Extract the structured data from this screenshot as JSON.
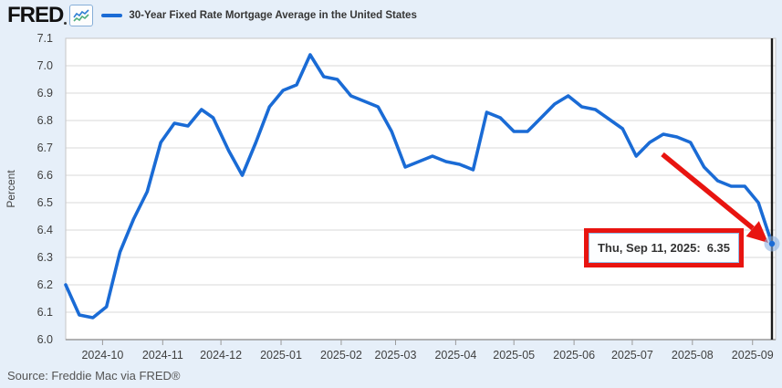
{
  "header": {
    "logo_text": "FRED",
    "legend_label": "30-Year Fixed Rate Mortgage Average in the United States"
  },
  "chart_data": {
    "type": "line",
    "title": "30-Year Fixed Rate Mortgage Average in the United States",
    "xlabel": "",
    "ylabel": "Percent",
    "ylim": [
      6.0,
      7.1
    ],
    "y_tick_step": 0.1,
    "grid": true,
    "legend_position": "top-left",
    "line_color": "#1a6bd5",
    "x_tick_labels": [
      "2024-10",
      "2024-11",
      "2024-12",
      "2025-01",
      "2025-02",
      "2025-03",
      "2025-04",
      "2025-05",
      "2025-06",
      "2025-07",
      "2025-08",
      "2025-09"
    ],
    "dates": [
      "2024-09-12",
      "2024-09-19",
      "2024-09-26",
      "2024-10-03",
      "2024-10-10",
      "2024-10-17",
      "2024-10-24",
      "2024-10-31",
      "2024-11-07",
      "2024-11-14",
      "2024-11-21",
      "2024-11-27",
      "2024-12-05",
      "2024-12-12",
      "2024-12-19",
      "2024-12-26",
      "2025-01-02",
      "2025-01-09",
      "2025-01-16",
      "2025-01-23",
      "2025-01-30",
      "2025-02-06",
      "2025-02-13",
      "2025-02-20",
      "2025-02-27",
      "2025-03-06",
      "2025-03-13",
      "2025-03-20",
      "2025-03-27",
      "2025-04-03",
      "2025-04-10",
      "2025-04-17",
      "2025-04-24",
      "2025-05-01",
      "2025-05-08",
      "2025-05-15",
      "2025-05-22",
      "2025-05-29",
      "2025-06-05",
      "2025-06-12",
      "2025-06-18",
      "2025-06-26",
      "2025-07-03",
      "2025-07-10",
      "2025-07-17",
      "2025-07-24",
      "2025-07-31",
      "2025-08-07",
      "2025-08-14",
      "2025-08-21",
      "2025-08-28",
      "2025-09-04",
      "2025-09-11"
    ],
    "values": [
      6.2,
      6.09,
      6.08,
      6.12,
      6.32,
      6.44,
      6.54,
      6.72,
      6.79,
      6.78,
      6.84,
      6.81,
      6.69,
      6.6,
      6.72,
      6.85,
      6.91,
      6.93,
      7.04,
      6.96,
      6.95,
      6.89,
      6.87,
      6.85,
      6.76,
      6.63,
      6.65,
      6.67,
      6.65,
      6.64,
      6.62,
      6.83,
      6.81,
      6.76,
      6.76,
      6.81,
      6.86,
      6.89,
      6.85,
      6.84,
      6.81,
      6.77,
      6.67,
      6.72,
      6.75,
      6.74,
      6.72,
      6.63,
      6.58,
      6.56,
      6.56,
      6.5,
      6.35
    ],
    "last_point": {
      "date": "2025-09-11",
      "value": 6.35
    }
  },
  "annotation": {
    "tooltip_text": "Thu, Sep 11, 2025:",
    "tooltip_value": "6.35",
    "highlight_color": "#e81410"
  },
  "footer": {
    "source": "Source: Freddie Mac via FRED®"
  }
}
